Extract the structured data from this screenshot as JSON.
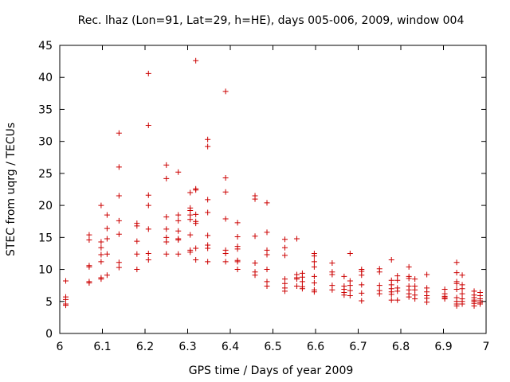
{
  "chart_data": {
    "type": "scatter",
    "title": "Rec. lhaz (Lon=91, Lat=29, h=HE), days 005-006, 2009, window 004",
    "xlabel": "GPS time / Days of year 2009",
    "ylabel": "STEC from uqrg / TECUs",
    "xlim": [
      6,
      7
    ],
    "ylim": [
      0,
      45
    ],
    "xticks": [
      6,
      6.1,
      6.2,
      6.3,
      6.4,
      6.5,
      6.6,
      6.7,
      6.8,
      6.9,
      7
    ],
    "xtick_labels": [
      "6",
      "6.1",
      "6.2",
      "6.3",
      "6.4",
      "6.5",
      "6.6",
      "6.7",
      "6.8",
      "6.9",
      "7"
    ],
    "yticks": [
      0,
      5,
      10,
      15,
      20,
      25,
      30,
      35,
      40,
      45
    ],
    "ytick_labels": [
      "0",
      "5",
      "10",
      "15",
      "20",
      "25",
      "30",
      "35",
      "40",
      "45"
    ],
    "marker": "+",
    "grid": false,
    "color": "#cc0000",
    "points": [
      [
        6.014,
        8.2
      ],
      [
        6.014,
        5.7
      ],
      [
        6.014,
        5.3
      ],
      [
        6.014,
        4.6
      ],
      [
        6.014,
        4.4
      ],
      [
        6.069,
        15.4
      ],
      [
        6.069,
        14.6
      ],
      [
        6.069,
        10.6
      ],
      [
        6.069,
        10.4
      ],
      [
        6.069,
        8.1
      ],
      [
        6.069,
        7.9
      ],
      [
        6.097,
        20.0
      ],
      [
        6.097,
        14.3
      ],
      [
        6.097,
        13.4
      ],
      [
        6.097,
        12.3
      ],
      [
        6.097,
        11.2
      ],
      [
        6.097,
        8.7
      ],
      [
        6.097,
        8.5
      ],
      [
        6.111,
        18.5
      ],
      [
        6.111,
        16.4
      ],
      [
        6.111,
        14.8
      ],
      [
        6.111,
        12.4
      ],
      [
        6.111,
        9.1
      ],
      [
        6.139,
        31.3
      ],
      [
        6.139,
        26.0
      ],
      [
        6.139,
        21.5
      ],
      [
        6.139,
        17.6
      ],
      [
        6.139,
        15.5
      ],
      [
        6.139,
        11.1
      ],
      [
        6.139,
        10.3
      ],
      [
        6.181,
        17.2
      ],
      [
        6.181,
        16.8
      ],
      [
        6.181,
        14.4
      ],
      [
        6.181,
        12.4
      ],
      [
        6.181,
        10.0
      ],
      [
        6.208,
        40.6
      ],
      [
        6.208,
        32.5
      ],
      [
        6.208,
        21.6
      ],
      [
        6.208,
        20.0
      ],
      [
        6.208,
        16.3
      ],
      [
        6.208,
        12.5
      ],
      [
        6.208,
        11.5
      ],
      [
        6.25,
        26.3
      ],
      [
        6.25,
        24.2
      ],
      [
        6.25,
        18.2
      ],
      [
        6.25,
        16.3
      ],
      [
        6.25,
        15.0
      ],
      [
        6.25,
        14.3
      ],
      [
        6.25,
        12.4
      ],
      [
        6.278,
        25.2
      ],
      [
        6.278,
        18.5
      ],
      [
        6.278,
        17.6
      ],
      [
        6.278,
        16.0
      ],
      [
        6.278,
        14.8
      ],
      [
        6.278,
        14.6
      ],
      [
        6.278,
        12.4
      ],
      [
        6.306,
        22.0
      ],
      [
        6.306,
        19.6
      ],
      [
        6.306,
        19.2
      ],
      [
        6.306,
        18.5
      ],
      [
        6.306,
        17.8
      ],
      [
        6.306,
        15.4
      ],
      [
        6.306,
        13.0
      ],
      [
        6.306,
        12.7
      ],
      [
        6.319,
        42.6
      ],
      [
        6.319,
        22.6
      ],
      [
        6.319,
        22.4
      ],
      [
        6.319,
        18.6
      ],
      [
        6.319,
        17.5
      ],
      [
        6.319,
        17.2
      ],
      [
        6.319,
        13.3
      ],
      [
        6.319,
        11.5
      ],
      [
        6.347,
        30.3
      ],
      [
        6.347,
        29.2
      ],
      [
        6.347,
        20.9
      ],
      [
        6.347,
        18.9
      ],
      [
        6.347,
        15.3
      ],
      [
        6.347,
        13.8
      ],
      [
        6.347,
        13.3
      ],
      [
        6.347,
        11.2
      ],
      [
        6.389,
        37.8
      ],
      [
        6.389,
        24.3
      ],
      [
        6.389,
        22.1
      ],
      [
        6.389,
        17.9
      ],
      [
        6.389,
        13.0
      ],
      [
        6.389,
        12.5
      ],
      [
        6.389,
        11.2
      ],
      [
        6.417,
        17.3
      ],
      [
        6.417,
        15.1
      ],
      [
        6.417,
        13.6
      ],
      [
        6.417,
        13.2
      ],
      [
        6.417,
        11.4
      ],
      [
        6.417,
        11.2
      ],
      [
        6.417,
        10.0
      ],
      [
        6.458,
        21.5
      ],
      [
        6.458,
        21.0
      ],
      [
        6.458,
        15.2
      ],
      [
        6.458,
        11.0
      ],
      [
        6.458,
        9.6
      ],
      [
        6.458,
        9.1
      ],
      [
        6.486,
        20.4
      ],
      [
        6.486,
        15.8
      ],
      [
        6.486,
        13.0
      ],
      [
        6.486,
        12.3
      ],
      [
        6.486,
        10.0
      ],
      [
        6.486,
        8.1
      ],
      [
        6.486,
        7.4
      ],
      [
        6.528,
        14.7
      ],
      [
        6.528,
        13.4
      ],
      [
        6.528,
        12.2
      ],
      [
        6.528,
        8.5
      ],
      [
        6.528,
        7.8
      ],
      [
        6.528,
        7.1
      ],
      [
        6.528,
        6.6
      ],
      [
        6.556,
        14.8
      ],
      [
        6.556,
        9.2
      ],
      [
        6.556,
        8.7
      ],
      [
        6.556,
        8.5
      ],
      [
        6.556,
        7.4
      ],
      [
        6.569,
        9.4
      ],
      [
        6.569,
        8.8
      ],
      [
        6.569,
        8.1
      ],
      [
        6.569,
        7.3
      ],
      [
        6.569,
        7.0
      ],
      [
        6.597,
        12.5
      ],
      [
        6.597,
        12.1
      ],
      [
        6.597,
        11.2
      ],
      [
        6.597,
        10.4
      ],
      [
        6.597,
        8.9
      ],
      [
        6.597,
        7.9
      ],
      [
        6.597,
        6.8
      ],
      [
        6.597,
        6.5
      ],
      [
        6.639,
        11.0
      ],
      [
        6.639,
        9.6
      ],
      [
        6.639,
        9.2
      ],
      [
        6.639,
        7.5
      ],
      [
        6.639,
        6.8
      ],
      [
        6.667,
        8.9
      ],
      [
        6.667,
        7.4
      ],
      [
        6.667,
        6.9
      ],
      [
        6.667,
        6.4
      ],
      [
        6.667,
        6.0
      ],
      [
        6.681,
        12.5
      ],
      [
        6.681,
        8.2
      ],
      [
        6.681,
        7.5
      ],
      [
        6.681,
        6.7
      ],
      [
        6.681,
        5.9
      ],
      [
        6.708,
        10.0
      ],
      [
        6.708,
        9.7
      ],
      [
        6.708,
        9.1
      ],
      [
        6.708,
        7.6
      ],
      [
        6.708,
        6.3
      ],
      [
        6.708,
        5.1
      ],
      [
        6.75,
        10.1
      ],
      [
        6.75,
        9.6
      ],
      [
        6.75,
        7.5
      ],
      [
        6.75,
        6.7
      ],
      [
        6.75,
        6.2
      ],
      [
        6.778,
        11.5
      ],
      [
        6.778,
        8.3
      ],
      [
        6.778,
        7.6
      ],
      [
        6.778,
        7.0
      ],
      [
        6.778,
        6.5
      ],
      [
        6.778,
        6.1
      ],
      [
        6.778,
        5.2
      ],
      [
        6.792,
        9.0
      ],
      [
        6.792,
        8.3
      ],
      [
        6.792,
        7.1
      ],
      [
        6.792,
        6.6
      ],
      [
        6.792,
        5.2
      ],
      [
        6.819,
        10.4
      ],
      [
        6.819,
        8.9
      ],
      [
        6.819,
        8.6
      ],
      [
        6.819,
        7.4
      ],
      [
        6.819,
        6.8
      ],
      [
        6.819,
        6.2
      ],
      [
        6.819,
        5.7
      ],
      [
        6.833,
        8.5
      ],
      [
        6.833,
        7.4
      ],
      [
        6.833,
        6.8
      ],
      [
        6.833,
        6.0
      ],
      [
        6.833,
        5.4
      ],
      [
        6.861,
        9.2
      ],
      [
        6.861,
        7.1
      ],
      [
        6.861,
        6.5
      ],
      [
        6.861,
        5.9
      ],
      [
        6.861,
        5.5
      ],
      [
        6.861,
        4.9
      ],
      [
        6.903,
        6.9
      ],
      [
        6.903,
        6.2
      ],
      [
        6.903,
        5.8
      ],
      [
        6.903,
        5.6
      ],
      [
        6.903,
        5.4
      ],
      [
        6.931,
        11.1
      ],
      [
        6.931,
        9.5
      ],
      [
        6.931,
        8.1
      ],
      [
        6.931,
        7.8
      ],
      [
        6.931,
        6.9
      ],
      [
        6.931,
        5.6
      ],
      [
        6.931,
        5.0
      ],
      [
        6.931,
        4.6
      ],
      [
        6.931,
        4.3
      ],
      [
        6.944,
        9.1
      ],
      [
        6.944,
        7.6
      ],
      [
        6.944,
        7.0
      ],
      [
        6.944,
        6.2
      ],
      [
        6.944,
        5.4
      ],
      [
        6.944,
        5.0
      ],
      [
        6.944,
        4.6
      ],
      [
        6.972,
        6.6
      ],
      [
        6.972,
        6.0
      ],
      [
        6.972,
        5.6
      ],
      [
        6.972,
        5.2
      ],
      [
        6.972,
        5.0
      ],
      [
        6.972,
        4.7
      ],
      [
        6.972,
        4.3
      ],
      [
        6.986,
        6.4
      ],
      [
        6.986,
        5.9
      ],
      [
        6.986,
        5.4
      ],
      [
        6.986,
        5.1
      ],
      [
        6.986,
        4.8
      ],
      [
        6.986,
        4.6
      ]
    ]
  }
}
